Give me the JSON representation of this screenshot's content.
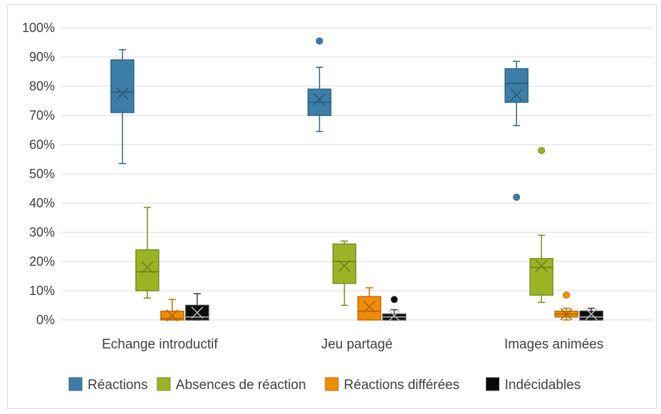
{
  "chart_data": {
    "type": "box",
    "ylim": [
      0,
      1
    ],
    "ytick_values": [
      0,
      0.1,
      0.2,
      0.3,
      0.4,
      0.5,
      0.6,
      0.7,
      0.8,
      0.9,
      1.0
    ],
    "ytick_labels": [
      "0%",
      "10%",
      "20%",
      "30%",
      "40%",
      "50%",
      "60%",
      "70%",
      "80%",
      "90%",
      "100%"
    ],
    "grid": true,
    "legend_position": "bottom",
    "categories": [
      "Echange introductif",
      "Jeu partagé",
      "Images animées"
    ],
    "series": [
      {
        "name": "Réactions",
        "color": "#3c7ea8",
        "boxes": [
          {
            "min": 0.535,
            "q1": 0.71,
            "median": 0.78,
            "q3": 0.89,
            "max": 0.925,
            "mean": 0.775,
            "outliers": []
          },
          {
            "min": 0.645,
            "q1": 0.7,
            "median": 0.745,
            "q3": 0.79,
            "max": 0.865,
            "mean": 0.755,
            "outliers": [
              0.955
            ]
          },
          {
            "min": 0.665,
            "q1": 0.745,
            "median": 0.81,
            "q3": 0.86,
            "max": 0.885,
            "mean": 0.77,
            "outliers": [
              0.42
            ]
          }
        ]
      },
      {
        "name": "Absences de réaction",
        "color": "#9bb426",
        "boxes": [
          {
            "min": 0.075,
            "q1": 0.1,
            "median": 0.165,
            "q3": 0.24,
            "max": 0.385,
            "mean": 0.18,
            "outliers": []
          },
          {
            "min": 0.05,
            "q1": 0.125,
            "median": 0.2,
            "q3": 0.26,
            "max": 0.27,
            "mean": 0.185,
            "outliers": []
          },
          {
            "min": 0.06,
            "q1": 0.085,
            "median": 0.18,
            "q3": 0.21,
            "max": 0.29,
            "mean": 0.185,
            "outliers": [
              0.58
            ]
          }
        ]
      },
      {
        "name": "Réactions différées",
        "color": "#f28c00",
        "boxes": [
          {
            "min": 0.0,
            "q1": 0.0,
            "median": 0.005,
            "q3": 0.03,
            "max": 0.07,
            "mean": 0.015,
            "outliers": []
          },
          {
            "min": 0.0,
            "q1": 0.0,
            "median": 0.03,
            "q3": 0.08,
            "max": 0.11,
            "mean": 0.045,
            "outliers": []
          },
          {
            "min": 0.0,
            "q1": 0.01,
            "median": 0.02,
            "q3": 0.03,
            "max": 0.04,
            "mean": 0.02,
            "outliers": [
              0.085
            ]
          }
        ]
      },
      {
        "name": "Indécidables",
        "color": "#0a0a0a",
        "boxes": [
          {
            "min": 0.0,
            "q1": 0.0,
            "median": 0.01,
            "q3": 0.05,
            "max": 0.09,
            "mean": 0.025,
            "outliers": []
          },
          {
            "min": 0.0,
            "q1": 0.0,
            "median": 0.01,
            "q3": 0.02,
            "max": 0.035,
            "mean": 0.015,
            "outliers": [
              0.07
            ]
          },
          {
            "min": 0.0,
            "q1": 0.0,
            "median": 0.01,
            "q3": 0.03,
            "max": 0.04,
            "mean": 0.02,
            "outliers": []
          }
        ]
      }
    ]
  }
}
